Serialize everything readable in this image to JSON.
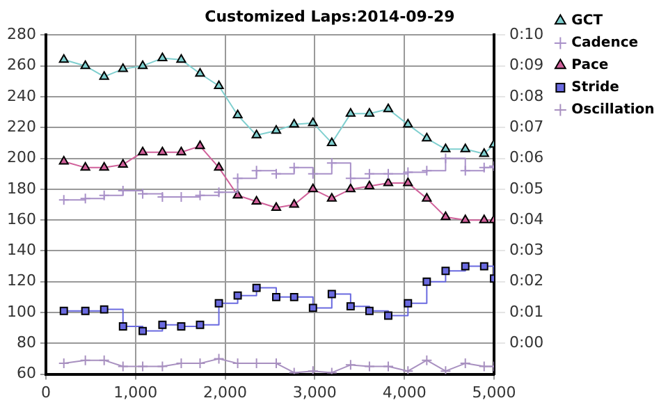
{
  "chart_data": {
    "type": "line",
    "title": "Customized Laps:2014-09-29",
    "x": [
      200,
      440,
      650,
      860,
      1080,
      1300,
      1510,
      1720,
      1930,
      2140,
      2350,
      2570,
      2770,
      2980,
      3190,
      3400,
      3610,
      3820,
      4040,
      4250,
      4460,
      4680,
      4890,
      5000
    ],
    "series": [
      {
        "name": "GCT",
        "color": "#7fcfcf",
        "marker": "triangle",
        "values": [
          264,
          260,
          253,
          258,
          260,
          265,
          264,
          255,
          247,
          228,
          215,
          218,
          222,
          223,
          210,
          229,
          229,
          232,
          222,
          213,
          206,
          206,
          203,
          209
        ]
      },
      {
        "name": "Cadence",
        "type": "step",
        "color": "#a890c8",
        "marker": "cross",
        "values": [
          173,
          174,
          176,
          179,
          177,
          175,
          175,
          176,
          178,
          187,
          192,
          190,
          194,
          190,
          197,
          187,
          190,
          190,
          191,
          192,
          200,
          192,
          194,
          195
        ]
      },
      {
        "name": "Pace",
        "axis": "y2",
        "color": "#d0609a",
        "marker": "triangle",
        "values": [
          5.9,
          5.7,
          5.7,
          5.8,
          6.2,
          6.2,
          6.2,
          6.4,
          5.7,
          4.8,
          4.6,
          4.4,
          4.5,
          5.0,
          4.7,
          5.0,
          5.1,
          5.2,
          5.2,
          4.7,
          4.1,
          4.0,
          4.0,
          4.0
        ]
      },
      {
        "name": "Stride",
        "type": "step",
        "color": "#6a6ae0",
        "marker": "square",
        "values": [
          101,
          101,
          102,
          91,
          88,
          92,
          91,
          92,
          106,
          111,
          116,
          110,
          110,
          103,
          112,
          104,
          101,
          98,
          106,
          120,
          127,
          130,
          130,
          122
        ]
      },
      {
        "name": "Oscillation",
        "color": "#a890c0",
        "marker": "cross",
        "values": [
          67,
          69,
          69,
          65,
          65,
          65,
          67,
          67,
          70,
          67,
          67,
          67,
          61,
          62,
          61,
          66,
          65,
          65,
          62,
          69,
          62,
          67,
          65,
          65
        ]
      }
    ],
    "xlim": [
      0,
      5000
    ],
    "xticks": [
      0,
      {
        "value": 1000,
        "label": "1,000"
      },
      {
        "value": 2000,
        "label": "2,000"
      },
      {
        "value": 3000,
        "label": "3,000"
      },
      {
        "value": 4000,
        "label": "4,000"
      },
      {
        "value": 5000,
        "label": "5,000"
      }
    ],
    "ylim": [
      60,
      280
    ],
    "yticks": [
      60,
      80,
      100,
      120,
      140,
      160,
      180,
      200,
      220,
      240,
      260,
      280
    ],
    "y2lim": [
      -1,
      10
    ],
    "y2ticks": [
      {
        "value": 0,
        "label": "0:00"
      },
      {
        "value": 1,
        "label": "0:01"
      },
      {
        "value": 2,
        "label": "0:02"
      },
      {
        "value": 3,
        "label": "0:03"
      },
      {
        "value": 4,
        "label": "0:04"
      },
      {
        "value": 5,
        "label": "0:05"
      },
      {
        "value": 6,
        "label": "0:06"
      },
      {
        "value": 7,
        "label": "0:07"
      },
      {
        "value": 8,
        "label": "0:08"
      },
      {
        "value": 9,
        "label": "0:09"
      },
      {
        "value": 10,
        "label": "0:10"
      }
    ],
    "grid": true,
    "legend": "right"
  }
}
